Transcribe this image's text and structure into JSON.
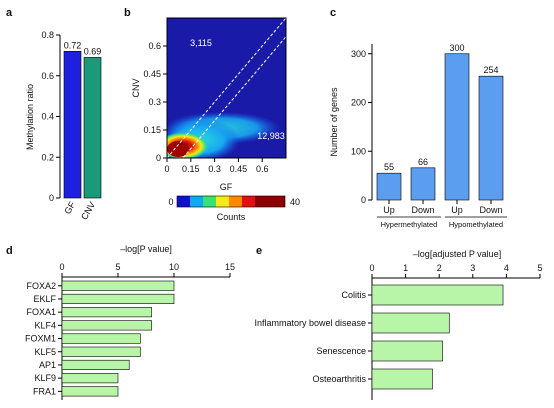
{
  "chart_data": [
    {
      "panel": "a",
      "type": "bar",
      "categories": [
        "GF",
        "CNV"
      ],
      "values": [
        0.72,
        0.69
      ],
      "value_labels": [
        "0.72",
        "0.69"
      ],
      "ylabel": "Methylation ratio",
      "ylim": [
        0,
        0.8
      ],
      "yticks": [
        "0",
        "0.2",
        "0.4",
        "0.6",
        "0.8"
      ],
      "colors": [
        "#1f1fe0",
        "#1a9a78"
      ]
    },
    {
      "panel": "b",
      "type": "heatmap",
      "xlabel": "GF",
      "ylabel": "CNV",
      "xlim": [
        0,
        0.75
      ],
      "ylim": [
        0,
        0.75
      ],
      "xticks": [
        "0",
        "0.15",
        "0.3",
        "0.45",
        "0.6"
      ],
      "yticks": [
        "0",
        "0.15",
        "0.3",
        "0.45",
        "0.6"
      ],
      "annotations": [
        "3,115",
        "12,983"
      ],
      "colorbar": {
        "min": "0",
        "max": "40",
        "label": "Counts"
      },
      "diagonal_lines": [
        {
          "offset": 0.0
        },
        {
          "offset": -0.1
        }
      ]
    },
    {
      "panel": "c",
      "type": "bar",
      "categories": [
        "Up",
        "Down",
        "Up",
        "Down"
      ],
      "values": [
        55,
        66,
        300,
        254
      ],
      "value_labels": [
        "55",
        "66",
        "300",
        "254"
      ],
      "groups": [
        "Hypermethylated",
        "Hypomethylated"
      ],
      "ylabel": "Number of genes",
      "ylim": [
        0,
        320
      ],
      "yticks": [
        "0",
        "100",
        "200",
        "300"
      ],
      "color": "#5b9ef0"
    },
    {
      "panel": "d",
      "type": "bar",
      "orientation": "horizontal",
      "title": "–log[P value]",
      "categories": [
        "FOXA2",
        "EKLF",
        "FOXA1",
        "KLF4",
        "FOXM1",
        "KLF5",
        "AP1",
        "KLF9",
        "FRA1"
      ],
      "values": [
        10.0,
        10.0,
        8.0,
        8.0,
        7.0,
        7.0,
        6.0,
        5.0,
        5.0
      ],
      "xlim": [
        0,
        15
      ],
      "xticks": [
        "0",
        "5",
        "10",
        "15"
      ],
      "color": "#b8f5a8"
    },
    {
      "panel": "e",
      "type": "bar",
      "orientation": "horizontal",
      "title": "–log[adjusted P value]",
      "categories": [
        "Colitis",
        "Inflammatory bowel disease",
        "Senescence",
        "Osteoarthritis"
      ],
      "values": [
        3.9,
        2.3,
        2.1,
        1.8
      ],
      "xlim": [
        0,
        5
      ],
      "xticks": [
        "0",
        "1",
        "2",
        "3",
        "4",
        "5"
      ],
      "color": "#b8f5a8"
    }
  ],
  "panel_labels": [
    "a",
    "b",
    "c",
    "d",
    "e"
  ]
}
